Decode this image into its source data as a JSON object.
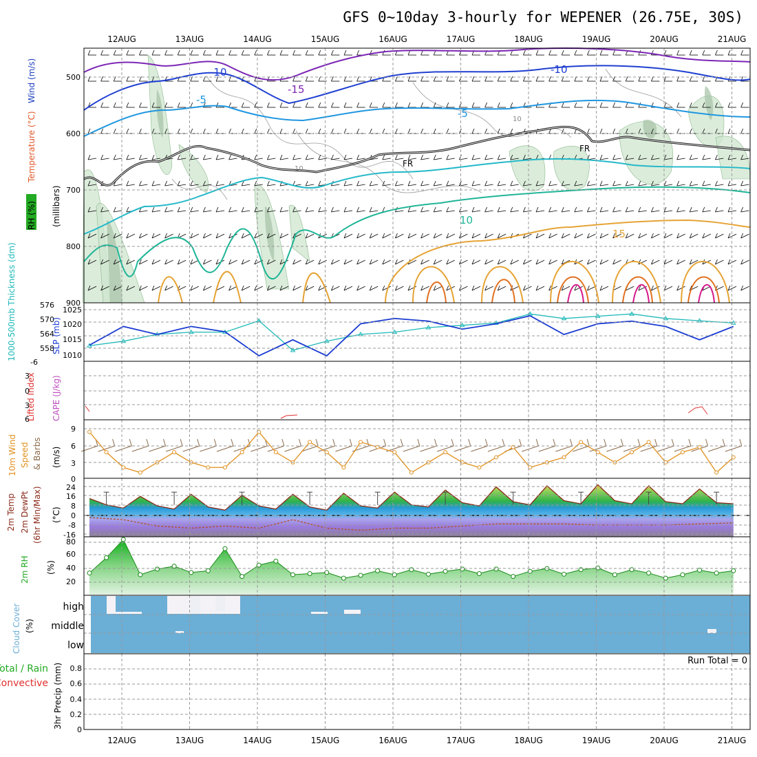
{
  "title": "GFS 0~10day 3-hourly for WEPENER (26.75E, 30S)",
  "dates": [
    "12AUG",
    "13AUG",
    "14AUG",
    "15AUG",
    "16AUG",
    "17AUG",
    "18AUG",
    "19AUG",
    "20AUG",
    "21AUG"
  ],
  "colors": {
    "temperature_label": "#e05a2b",
    "wind_label": "#1d3fbf",
    "rh_box": "#22aa22",
    "slp": "#1a3bd1",
    "thickness": "#20b8b8",
    "lifted": "#e03030",
    "cape": "#c050c0",
    "wind10": "#e0901e",
    "temp2m": "#8a2a1a",
    "rh2m": "#22aa22",
    "cloud": "#6baed6",
    "grid": "#9a9a9a"
  },
  "panels": {
    "upper": {
      "labels": {
        "rh": "RH (%)",
        "temperature": "Temperature (°C)",
        "wind": "Wind (m/s)",
        "pressure": "(millibars)"
      },
      "yticks": [
        "500",
        "600",
        "700",
        "800",
        "900"
      ],
      "contour_labels": [
        "-10",
        "-15",
        "-5",
        "-5",
        "-10",
        "10",
        "15",
        "FR",
        "FR",
        "10",
        "10"
      ]
    },
    "slp": {
      "left_label": "1000-500mb Thickness (dm)",
      "right_label": "SLP (mb)",
      "yticks_left": [
        "576",
        "570",
        "564",
        "558"
      ],
      "yticks_right": [
        "1025",
        "1020",
        "1015",
        "1010"
      ]
    },
    "cape": {
      "left_label": "Lifted Index",
      "right_label": "CAPE (J/kg)",
      "yticks": [
        "6",
        "3",
        "0",
        "3",
        "6"
      ],
      "yticks_top": "-6"
    },
    "wind10": {
      "labels": [
        "10m Wind",
        "Speed",
        "& Barbs",
        "(m/s)"
      ],
      "yticks": [
        "9",
        "6",
        "3",
        "0"
      ]
    },
    "temp2m": {
      "labels": [
        "2m Temp",
        "2m DewPt",
        "(6hr Min/Max)",
        "(°C)"
      ],
      "yticks": [
        "24",
        "16",
        "8",
        "0",
        "-8",
        "-16"
      ]
    },
    "rh2m": {
      "labels": [
        "2m RH",
        "(%)"
      ],
      "yticks": [
        "80",
        "60",
        "40",
        "20"
      ]
    },
    "cloud": {
      "labels": [
        "Cloud Cover",
        "(%)"
      ],
      "yticks": [
        "high",
        "middle",
        "low"
      ]
    },
    "precip": {
      "labels": [
        "Total / Rain",
        "Convective",
        "3hr Precip (mm)"
      ],
      "yticks": [
        "0.8",
        "0.6",
        "0.4",
        "0.2",
        "0"
      ],
      "run_total": "Run Total = 0"
    }
  },
  "chart_data": [
    {
      "type": "line",
      "title": "SLP (mb)",
      "x_unit": "days from 11 Aug 12Z",
      "series": [
        {
          "name": "SLP (mb)",
          "x": [
            0,
            0.5,
            1,
            1.5,
            2,
            2.5,
            3,
            3.5,
            4,
            4.5,
            5,
            5.5,
            6,
            6.5,
            7,
            7.5,
            8,
            8.5,
            9,
            9.5
          ],
          "values": [
            1014,
            1021,
            1018,
            1021,
            1019,
            1010,
            1016,
            1010,
            1022,
            1024,
            1023,
            1020,
            1022,
            1025,
            1018,
            1022,
            1023,
            1021,
            1016,
            1021
          ]
        },
        {
          "name": "1000-500mb Thickness (dm)",
          "x": [
            0,
            0.5,
            1,
            1.5,
            2,
            2.5,
            3,
            3.5,
            4,
            4.5,
            5,
            5.5,
            6,
            6.5,
            7,
            7.5,
            8,
            8.5,
            9,
            9.5
          ],
          "values": [
            559,
            561,
            564,
            565,
            565,
            570,
            557,
            561,
            564,
            565,
            567,
            568,
            569,
            573,
            571,
            572,
            573,
            571,
            570,
            569
          ]
        }
      ],
      "ylim": [
        1008,
        1027
      ]
    },
    {
      "type": "line",
      "title": "10m Wind Speed",
      "ylabel": "(m/s)",
      "x": [
        0,
        0.25,
        0.5,
        0.75,
        1,
        1.25,
        1.5,
        1.75,
        2,
        2.25,
        2.5,
        2.75,
        3,
        3.25,
        3.5,
        3.75,
        4,
        4.25,
        4.5,
        4.75,
        5,
        5.25,
        5.5,
        5.75,
        6,
        6.25,
        6.5,
        6.75,
        7,
        7.25,
        7.5,
        7.75,
        8,
        8.25,
        8.5,
        8.75,
        9,
        9.25,
        9.5
      ],
      "values": [
        9,
        5,
        2,
        1,
        3,
        5,
        3,
        2,
        2,
        5,
        9,
        5,
        3,
        7,
        5,
        2,
        7,
        6,
        5,
        1,
        3,
        5,
        3,
        2,
        4,
        6,
        2,
        3,
        4,
        7,
        5,
        3,
        5,
        7,
        3,
        5,
        6,
        1,
        4
      ],
      "ylim": [
        0,
        10
      ]
    },
    {
      "type": "area",
      "title": "2m Temp / DewPt",
      "ylabel": "(°C)",
      "series": [
        {
          "name": "2m Temp",
          "x": [
            0,
            0.25,
            0.5,
            0.75,
            1,
            1.25,
            1.5,
            1.75,
            2,
            2.25,
            2.5,
            2.75,
            3,
            3.25,
            3.5,
            3.75,
            4,
            4.25,
            4.5,
            4.75,
            5,
            5.25,
            5.5,
            5.75,
            6,
            6.25,
            6.5,
            6.75,
            7,
            7.25,
            7.5,
            7.75,
            8,
            8.25,
            8.5,
            8.75,
            9,
            9.25,
            9.5
          ],
          "values": [
            16,
            10,
            7,
            18,
            9,
            6,
            20,
            8,
            5,
            19,
            9,
            6,
            20,
            8,
            5,
            21,
            9,
            7,
            22,
            10,
            8,
            24,
            12,
            9,
            27,
            13,
            10,
            28,
            14,
            11,
            29,
            14,
            11,
            28,
            13,
            11,
            25,
            12,
            11
          ]
        },
        {
          "name": "2m DewPt",
          "x": [
            0,
            0.5,
            1,
            1.5,
            2,
            2.5,
            3,
            3.5,
            4,
            4.5,
            5,
            5.5,
            6,
            6.5,
            7,
            7.5,
            8,
            8.5,
            9,
            9.5
          ],
          "values": [
            -2,
            -4,
            -10,
            -12,
            -10,
            -12,
            -4,
            -12,
            -14,
            -12,
            -12,
            -10,
            -8,
            -8,
            -8,
            -9,
            -9,
            -9,
            -8,
            -7
          ]
        }
      ],
      "ylim": [
        -18,
        28
      ]
    },
    {
      "type": "area",
      "title": "2m RH",
      "ylabel": "(%)",
      "x": [
        0,
        0.25,
        0.5,
        0.75,
        1,
        1.25,
        1.5,
        1.75,
        2,
        2.25,
        2.5,
        2.75,
        3,
        3.25,
        3.5,
        3.75,
        4,
        4.25,
        4.5,
        4.75,
        5,
        5.25,
        5.5,
        5.75,
        6,
        6.25,
        6.5,
        6.75,
        7,
        7.25,
        7.5,
        7.75,
        8,
        8.25,
        8.5,
        8.75,
        9,
        9.25,
        9.5
      ],
      "values": [
        21,
        48,
        80,
        18,
        28,
        33,
        22,
        25,
        64,
        15,
        35,
        42,
        18,
        20,
        22,
        12,
        17,
        25,
        18,
        27,
        19,
        24,
        28,
        20,
        28,
        15,
        24,
        29,
        19,
        27,
        30,
        18,
        27,
        21,
        12,
        18,
        26,
        21,
        25
      ],
      "ylim": [
        0,
        85
      ]
    }
  ]
}
